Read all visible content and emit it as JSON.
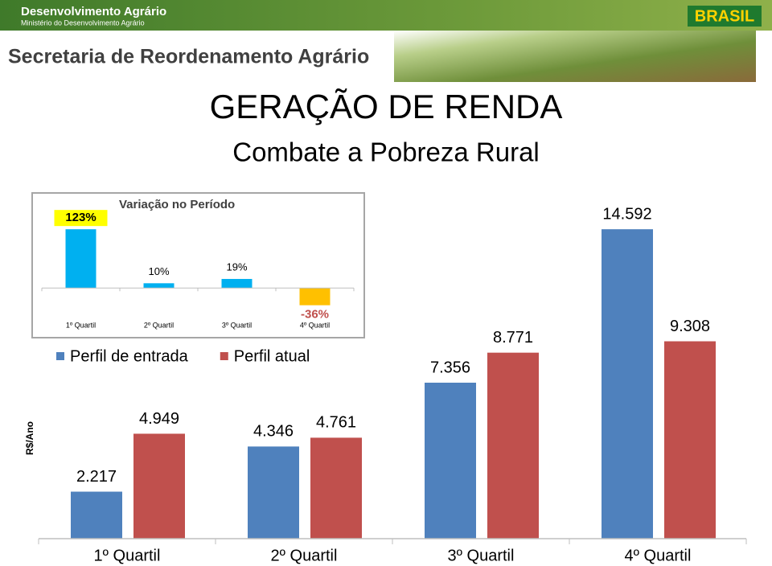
{
  "header": {
    "brand": "Desenvolvimento Agrário",
    "ministry": "Ministério do Desenvolvimento Agrário",
    "secretariat": "Secretaria de Reordenamento Agrário",
    "logo": "BRASIL"
  },
  "title": "GERAÇÃO DE RENDA",
  "subtitle": "Combate a Pobreza Rural",
  "chart_data": [
    {
      "type": "bar",
      "y_label": "R$/Ano",
      "legend": "top-left",
      "categories": [
        "1º Quartil",
        "2º Quartil",
        "3º Quartil",
        "4º Quartil"
      ],
      "series": [
        {
          "name": "Perfil de entrada",
          "color": "#4f81bd",
          "values": [
            2217,
            4346,
            7356,
            14592
          ],
          "value_labels": [
            "2.217",
            "4.346",
            "7.356",
            "14.592"
          ]
        },
        {
          "name": "Perfil atual",
          "color": "#c0504d",
          "values": [
            4949,
            4761,
            8771,
            9308
          ],
          "value_labels": [
            "4.949",
            "4.761",
            "8.771",
            "9.308"
          ]
        }
      ],
      "ylim": [
        0,
        16000
      ]
    },
    {
      "type": "bar",
      "title": "Variação no Período",
      "categories": [
        "1º Quartil",
        "2º Quartil",
        "3º Quartil",
        "4º Quartil"
      ],
      "values": [
        123,
        10,
        19,
        -36
      ],
      "value_labels": [
        "123%",
        "10%",
        "19%",
        "-36%"
      ],
      "colors": [
        "#00b0f0",
        "#00b0f0",
        "#00b0f0",
        "#ffc000"
      ],
      "ylim": [
        -45,
        130
      ]
    }
  ]
}
